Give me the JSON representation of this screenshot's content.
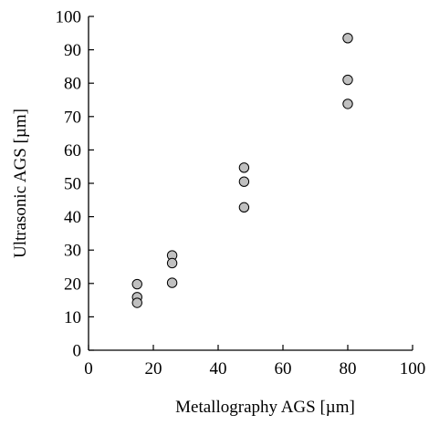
{
  "chart_data": {
    "type": "scatter",
    "title": "",
    "xlabel": "Metallography AGS  [µm]",
    "ylabel": "Ultrasonic AGS [µm]",
    "xlim": [
      0,
      100
    ],
    "ylim": [
      0,
      100
    ],
    "x_ticks": [
      0,
      20,
      40,
      60,
      80,
      100
    ],
    "y_ticks": [
      0,
      10,
      20,
      30,
      40,
      50,
      60,
      70,
      80,
      90,
      100
    ],
    "grid": false,
    "legend": "none",
    "marker_fill": "#c0c0c0",
    "marker_edge": "#000000",
    "points": [
      {
        "x": 15,
        "y": 19.8
      },
      {
        "x": 15,
        "y": 15.9
      },
      {
        "x": 15,
        "y": 14.2
      },
      {
        "x": 25.8,
        "y": 28.4
      },
      {
        "x": 25.8,
        "y": 26.1
      },
      {
        "x": 25.8,
        "y": 20.2
      },
      {
        "x": 48,
        "y": 54.7
      },
      {
        "x": 48,
        "y": 50.5
      },
      {
        "x": 48,
        "y": 42.8
      },
      {
        "x": 80,
        "y": 93.5
      },
      {
        "x": 80,
        "y": 81.0
      },
      {
        "x": 80,
        "y": 73.8
      }
    ]
  }
}
